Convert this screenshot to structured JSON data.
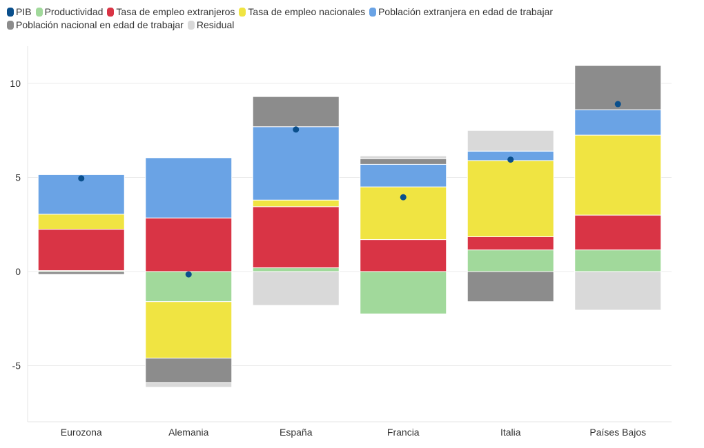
{
  "chart_data": {
    "type": "bar",
    "stacked": true,
    "categories": [
      "Eurozona",
      "Alemania",
      "España",
      "Francia",
      "Italia",
      "Países Bajos"
    ],
    "ylim": [
      -8,
      12
    ],
    "yticks": [
      10,
      5,
      0,
      -5
    ],
    "ytick_labels": [
      "10",
      "5",
      "0",
      "-5"
    ],
    "grid": true,
    "legend_position": "top-left",
    "series": [
      {
        "name": "Productividad",
        "color": "#a1d99b",
        "values": [
          0.05,
          -1.6,
          0.2,
          -2.25,
          1.15,
          1.15
        ]
      },
      {
        "name": "Tasa de empleo extranjeros",
        "color": "#d93445",
        "values": [
          2.2,
          2.85,
          3.25,
          1.7,
          0.7,
          1.85
        ]
      },
      {
        "name": "Tasa de empleo nacionales",
        "color": "#f0e442",
        "values": [
          0.8,
          -3.0,
          0.35,
          2.8,
          4.05,
          4.25
        ]
      },
      {
        "name": "Población extranjera en edad de trabajar",
        "color": "#6aa3e5",
        "values": [
          2.1,
          3.2,
          3.9,
          1.2,
          0.5,
          1.35
        ]
      },
      {
        "name": "Población nacional en edad de trabajar",
        "color": "#8c8c8c",
        "values": [
          -0.15,
          -1.3,
          1.6,
          0.3,
          -1.6,
          2.35
        ]
      },
      {
        "name": "Residual",
        "color": "#d9d9d9",
        "values": [
          0.0,
          -0.25,
          -1.8,
          0.15,
          1.1,
          -2.05
        ]
      }
    ],
    "line_series": {
      "name": "PIB",
      "color": "#0a4f8c",
      "values": [
        4.95,
        -0.15,
        7.55,
        3.95,
        5.95,
        8.9
      ]
    }
  }
}
